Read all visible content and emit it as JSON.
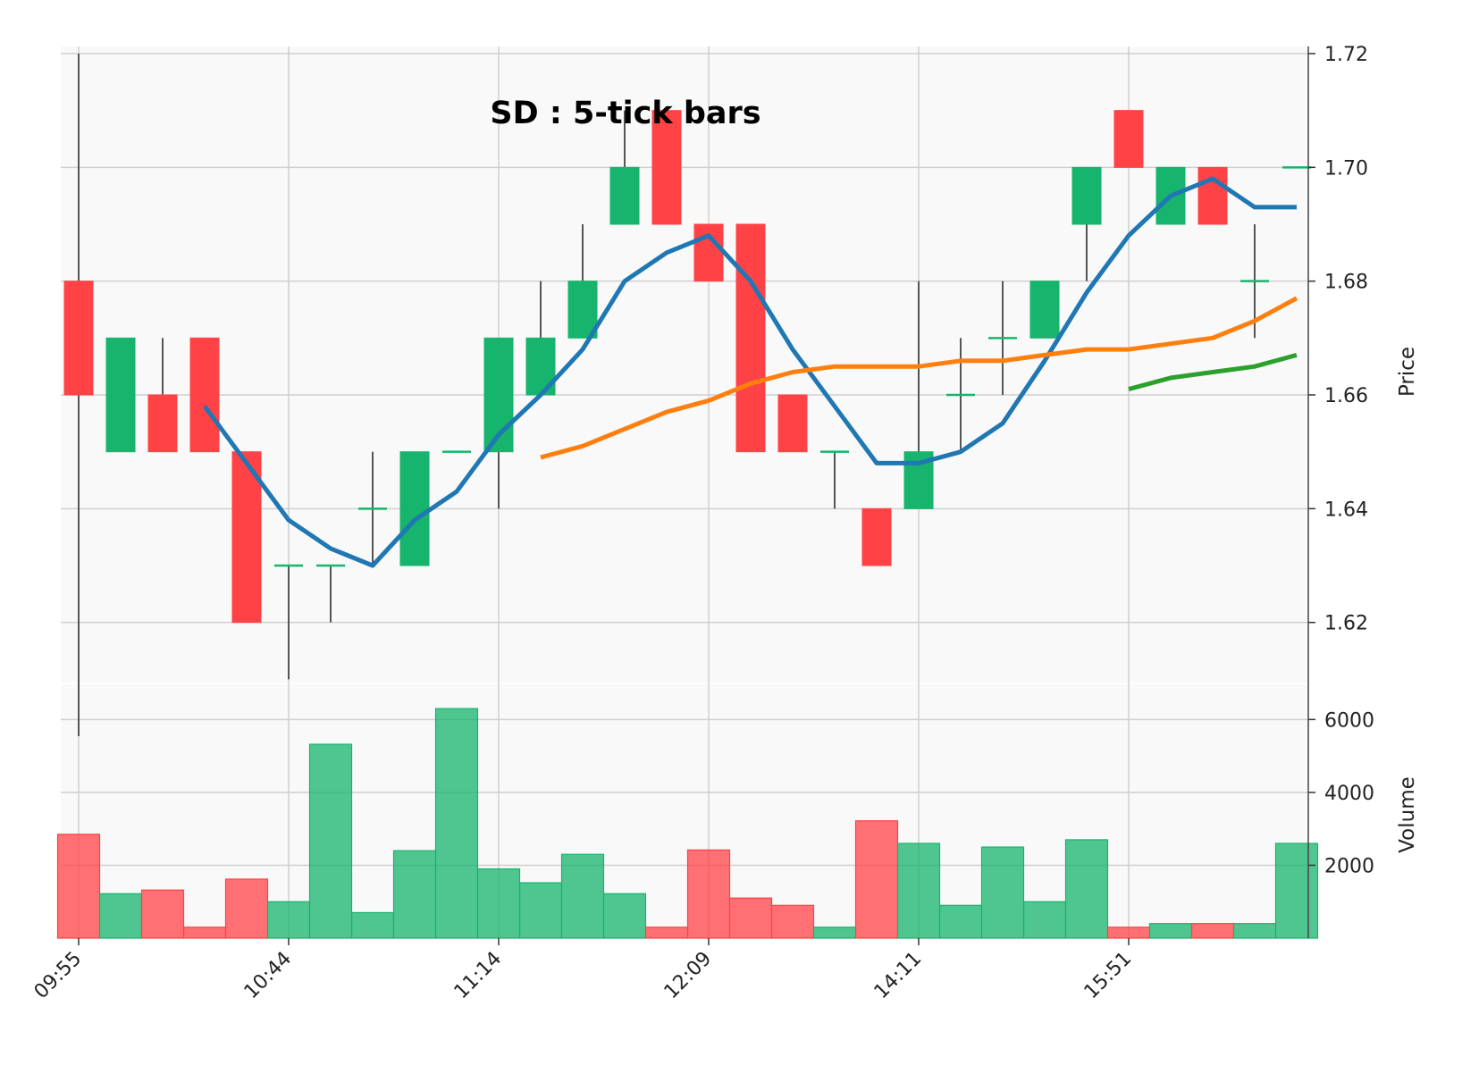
{
  "chart_data": {
    "type": "candlestick",
    "title": "SD : 5-tick bars",
    "x_tick_labels": [
      "09:55",
      "10:44",
      "11:14",
      "12:09",
      "14:11",
      "15:51"
    ],
    "x_tick_indices": [
      0,
      5,
      10,
      15,
      20,
      25
    ],
    "price_axis": {
      "label": "Price",
      "range": [
        1.61,
        1.72
      ],
      "ticks": [
        "1.62",
        "1.64",
        "1.66",
        "1.68",
        "1.70",
        "1.72"
      ]
    },
    "volume_axis": {
      "label": "Volume",
      "range": [
        0,
        7000
      ],
      "ticks": [
        "2000",
        "4000",
        "6000"
      ]
    },
    "colors": {
      "up": "#16b46c",
      "down": "#ff4246",
      "wick": "#555555",
      "ma_short": "#1f77b4",
      "ma_mid": "#ff7f0e",
      "ma_long": "#2ca02c",
      "grid": "#cfcfcf",
      "panel_bg": "#f9f9f9"
    },
    "candles": [
      {
        "open": 1.68,
        "high": 1.72,
        "low": 1.6,
        "close": 1.66,
        "volume": 2850
      },
      {
        "open": 1.65,
        "high": 1.67,
        "low": 1.65,
        "close": 1.67,
        "volume": 1220
      },
      {
        "open": 1.66,
        "high": 1.67,
        "low": 1.65,
        "close": 1.65,
        "volume": 1320
      },
      {
        "open": 1.67,
        "high": 1.67,
        "low": 1.65,
        "close": 1.65,
        "volume": 300
      },
      {
        "open": 1.65,
        "high": 1.65,
        "low": 1.62,
        "close": 1.62,
        "volume": 1620
      },
      {
        "open": 1.63,
        "high": 1.63,
        "low": 1.61,
        "close": 1.63,
        "volume": 1000
      },
      {
        "open": 1.63,
        "high": 1.63,
        "low": 1.62,
        "close": 1.63,
        "volume": 5320
      },
      {
        "open": 1.64,
        "high": 1.65,
        "low": 1.63,
        "close": 1.64,
        "volume": 700
      },
      {
        "open": 1.63,
        "high": 1.65,
        "low": 1.63,
        "close": 1.65,
        "volume": 2400
      },
      {
        "open": 1.65,
        "high": 1.65,
        "low": 1.65,
        "close": 1.65,
        "volume": 6300
      },
      {
        "open": 1.65,
        "high": 1.67,
        "low": 1.64,
        "close": 1.67,
        "volume": 1900
      },
      {
        "open": 1.66,
        "high": 1.68,
        "low": 1.66,
        "close": 1.67,
        "volume": 1520
      },
      {
        "open": 1.67,
        "high": 1.69,
        "low": 1.67,
        "close": 1.68,
        "volume": 2300
      },
      {
        "open": 1.69,
        "high": 1.71,
        "low": 1.69,
        "close": 1.7,
        "volume": 1220
      },
      {
        "open": 1.71,
        "high": 1.71,
        "low": 1.69,
        "close": 1.69,
        "volume": 300
      },
      {
        "open": 1.69,
        "high": 1.69,
        "low": 1.68,
        "close": 1.68,
        "volume": 2420
      },
      {
        "open": 1.69,
        "high": 1.69,
        "low": 1.65,
        "close": 1.65,
        "volume": 1100
      },
      {
        "open": 1.66,
        "high": 1.66,
        "low": 1.65,
        "close": 1.65,
        "volume": 900
      },
      {
        "open": 1.65,
        "high": 1.65,
        "low": 1.64,
        "close": 1.65,
        "volume": 300
      },
      {
        "open": 1.64,
        "high": 1.64,
        "low": 1.63,
        "close": 1.63,
        "volume": 3220
      },
      {
        "open": 1.64,
        "high": 1.68,
        "low": 1.64,
        "close": 1.65,
        "volume": 2600
      },
      {
        "open": 1.66,
        "high": 1.67,
        "low": 1.65,
        "close": 1.66,
        "volume": 900
      },
      {
        "open": 1.67,
        "high": 1.68,
        "low": 1.66,
        "close": 1.67,
        "volume": 2500
      },
      {
        "open": 1.67,
        "high": 1.68,
        "low": 1.67,
        "close": 1.68,
        "volume": 1000
      },
      {
        "open": 1.69,
        "high": 1.7,
        "low": 1.68,
        "close": 1.7,
        "volume": 2700
      },
      {
        "open": 1.71,
        "high": 1.71,
        "low": 1.7,
        "close": 1.7,
        "volume": 300
      },
      {
        "open": 1.69,
        "high": 1.7,
        "low": 1.69,
        "close": 1.7,
        "volume": 400
      },
      {
        "open": 1.7,
        "high": 1.7,
        "low": 1.69,
        "close": 1.69,
        "volume": 400
      },
      {
        "open": 1.68,
        "high": 1.69,
        "low": 1.67,
        "close": 1.68,
        "volume": 400
      },
      {
        "open": 1.7,
        "high": 1.7,
        "low": 1.7,
        "close": 1.7,
        "volume": 2600
      }
    ],
    "moving_averages": [
      {
        "key": "ma_short",
        "start": 3,
        "values": [
          1.658,
          1.648,
          1.638,
          1.633,
          1.63,
          1.638,
          1.643,
          1.653,
          1.66,
          1.668,
          1.68,
          1.685,
          1.688,
          1.68,
          1.668,
          1.658,
          1.648,
          1.648,
          1.65,
          1.655,
          1.666,
          1.678,
          1.688,
          1.695,
          1.698,
          1.693,
          1.693
        ]
      },
      {
        "key": "ma_mid",
        "start": 11,
        "values": [
          1.649,
          1.651,
          1.654,
          1.657,
          1.659,
          1.662,
          1.664,
          1.665,
          1.665,
          1.665,
          1.666,
          1.666,
          1.667,
          1.668,
          1.668,
          1.669,
          1.67,
          1.673,
          1.677
        ]
      },
      {
        "key": "ma_long",
        "start": 25,
        "values": [
          1.661,
          1.663,
          1.664,
          1.665,
          1.667
        ]
      }
    ]
  }
}
